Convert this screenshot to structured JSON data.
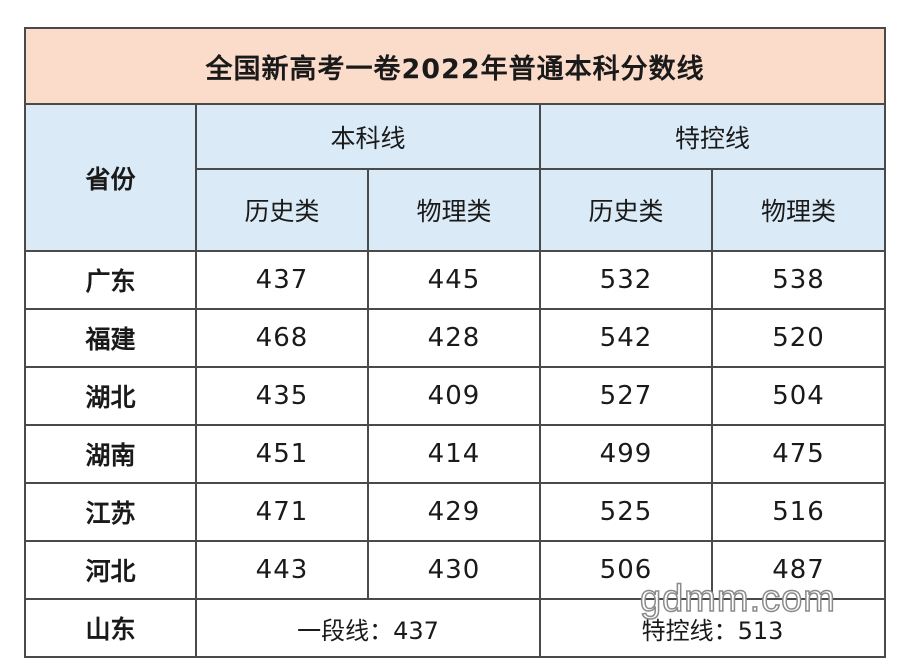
{
  "title": "全国新高考一卷2022年普通本科分数线",
  "headers": {
    "province": "省份",
    "benke": "本科线",
    "tekong": "特控线",
    "history": "历史类",
    "physics": "物理类"
  },
  "rows": [
    {
      "province": "广东",
      "benke_history": "437",
      "benke_physics": "445",
      "tekong_history": "532",
      "tekong_physics": "538"
    },
    {
      "province": "福建",
      "benke_history": "468",
      "benke_physics": "428",
      "tekong_history": "542",
      "tekong_physics": "520"
    },
    {
      "province": "湖北",
      "benke_history": "435",
      "benke_physics": "409",
      "tekong_history": "527",
      "tekong_physics": "504"
    },
    {
      "province": "湖南",
      "benke_history": "451",
      "benke_physics": "414",
      "tekong_history": "499",
      "tekong_physics": "475"
    },
    {
      "province": "江苏",
      "benke_history": "471",
      "benke_physics": "429",
      "tekong_history": "525",
      "tekong_physics": "516"
    },
    {
      "province": "河北",
      "benke_history": "443",
      "benke_physics": "430",
      "tekong_history": "506",
      "tekong_physics": "487"
    }
  ],
  "footer": {
    "province": "山东",
    "benke": "一段线：437",
    "tekong": "特控线：513"
  },
  "watermark": "gdmm.com",
  "colors": {
    "title_bg": "#fbdccb",
    "header_bg": "#dbeaf7",
    "border": "#4a4a4a"
  }
}
